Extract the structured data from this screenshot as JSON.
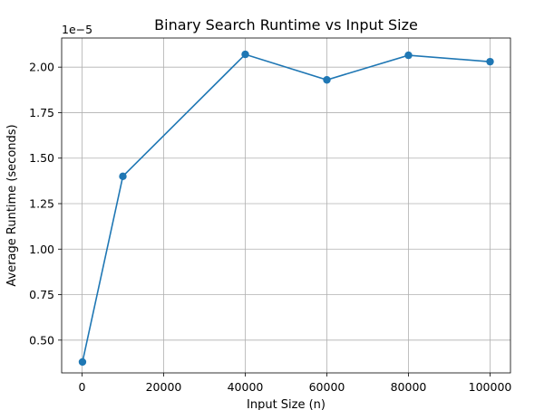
{
  "chart_data": {
    "type": "line",
    "title": "Binary Search Runtime vs Input Size",
    "xlabel": "Input Size (n)",
    "ylabel": "Average Runtime (seconds)",
    "y_offset_label": "1e−5",
    "x": [
      100,
      10000,
      40000,
      60000,
      80000,
      100000
    ],
    "series": [
      {
        "values": [
          3.8e-06,
          1.4e-05,
          2.07e-05,
          1.93e-05,
          2.065e-05,
          2.03e-05
        ],
        "color": "#1f77b4",
        "marker": "circle"
      }
    ],
    "xlim": [
      -5000,
      105000
    ],
    "ylim": [
      3.2e-06,
      2.16e-05
    ],
    "xticks": [
      0,
      20000,
      40000,
      60000,
      80000,
      100000
    ],
    "xtick_labels": [
      "0",
      "20000",
      "40000",
      "60000",
      "80000",
      "100000"
    ],
    "yticks": [
      5e-06,
      7.5e-06,
      1e-05,
      1.25e-05,
      1.5e-05,
      1.75e-05,
      2e-05
    ],
    "ytick_labels": [
      "0.50",
      "0.75",
      "1.00",
      "1.25",
      "1.50",
      "1.75",
      "2.00"
    ],
    "grid": true
  }
}
